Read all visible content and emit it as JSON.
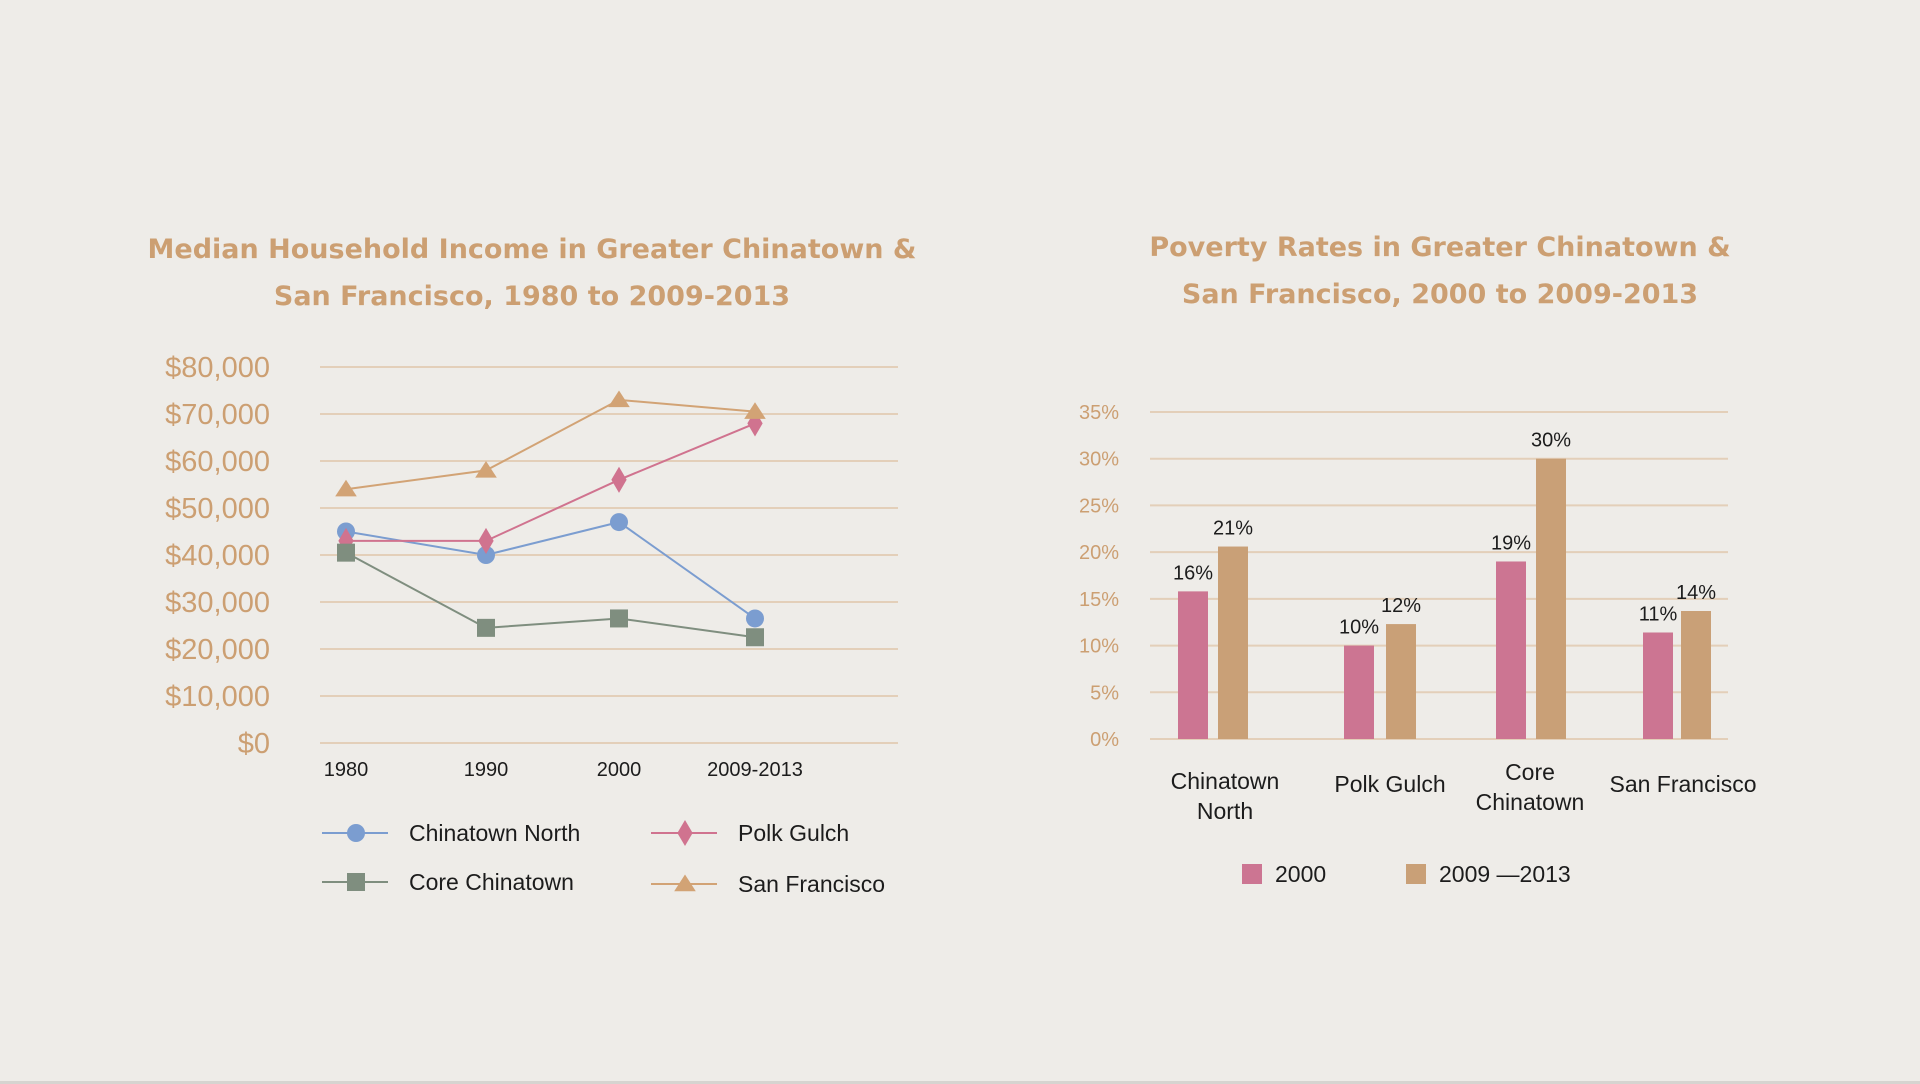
{
  "colors": {
    "background": "#eeece8",
    "title": "#cc9f72",
    "grid": "#e3cfb9",
    "axis_text": "#cc9f72",
    "label_text": "#1c1c1c",
    "chinatown_north": "#7b9dd0",
    "polk_gulch": "#d0738f",
    "core_chinatown": "#7f8e7f",
    "san_francisco": "#d2a375",
    "bar_2000": "#cc7592",
    "bar_2009": "#c9a077"
  },
  "chart_data": [
    {
      "type": "line",
      "title": "Median Household Income in Greater Chinatown & San Francisco, 1980 to 2009-2013",
      "title_lines": [
        "Median Household Income in Greater Chinatown &",
        "San Francisco, 1980 to 2009-2013"
      ],
      "xlabel": "",
      "ylabel": "",
      "x": [
        "1980",
        "1990",
        "2000",
        "2009-2013"
      ],
      "ylim": [
        0,
        80000
      ],
      "yticks": [
        0,
        10000,
        20000,
        30000,
        40000,
        50000,
        60000,
        70000,
        80000
      ],
      "ytick_labels": [
        "$0",
        "$10,000",
        "$20,000",
        "$30,000",
        "$40,000",
        "$50,000",
        "$60,000",
        "$70,000",
        "$80,000"
      ],
      "grid": true,
      "legend_position": "bottom",
      "series": [
        {
          "name": "Chinatown North",
          "marker": "circle",
          "color": "#7b9dd0",
          "values": [
            45000,
            40000,
            47000,
            26500
          ]
        },
        {
          "name": "Polk Gulch",
          "marker": "diamond",
          "color": "#d0738f",
          "values": [
            43000,
            43000,
            56000,
            68000
          ]
        },
        {
          "name": "Core Chinatown",
          "marker": "square",
          "color": "#7f8e7f",
          "values": [
            40500,
            24500,
            26500,
            22500
          ]
        },
        {
          "name": "San Francisco",
          "marker": "triangle",
          "color": "#d2a375",
          "values": [
            54000,
            58000,
            73000,
            70500
          ]
        }
      ]
    },
    {
      "type": "bar",
      "title": "Poverty Rates in Greater Chinatown & San Francisco, 2000 to 2009-2013",
      "title_lines": [
        "Poverty Rates in Greater Chinatown &",
        "San Francisco, 2000 to 2009-2013"
      ],
      "xlabel": "",
      "ylabel": "",
      "categories": [
        [
          "Chinatown",
          "North"
        ],
        [
          "Polk Gulch"
        ],
        [
          "Core",
          "Chinatown"
        ],
        [
          "San Francisco"
        ]
      ],
      "ylim": [
        0,
        35
      ],
      "yticks": [
        0,
        5,
        10,
        15,
        20,
        25,
        30,
        35
      ],
      "ytick_labels": [
        "0%",
        "5%",
        "10%",
        "15%",
        "20%",
        "25%",
        "30%",
        "35%"
      ],
      "grid": true,
      "legend_position": "bottom",
      "series": [
        {
          "name": "2000",
          "color": "#cc7592",
          "values": [
            15.8,
            10.0,
            19.0,
            11.4
          ],
          "labels": [
            "16%",
            "10%",
            "19%",
            "11%"
          ]
        },
        {
          "name": "2009 —2013",
          "color": "#c9a077",
          "values": [
            20.6,
            12.3,
            30.0,
            13.7
          ],
          "labels": [
            "21%",
            "12%",
            "30%",
            "14%"
          ]
        }
      ]
    }
  ]
}
